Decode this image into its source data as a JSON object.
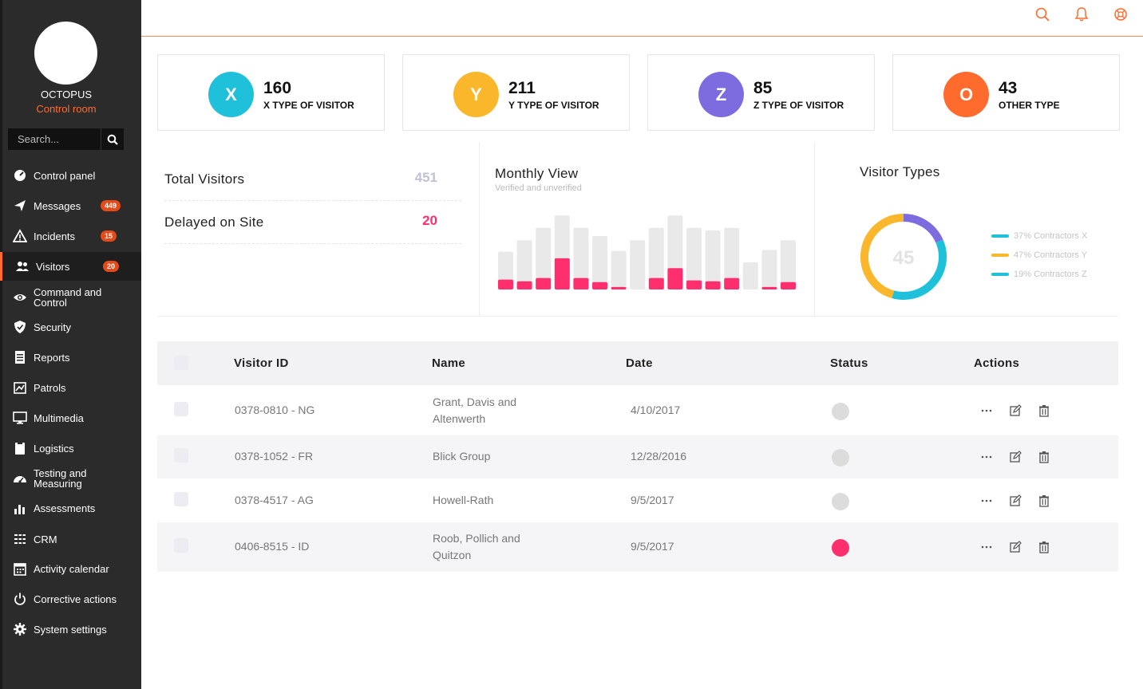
{
  "brand": {
    "name": "OCTOPUS",
    "subtitle": "Control room"
  },
  "search": {
    "placeholder": "Search..."
  },
  "sidebar": {
    "items": [
      {
        "label": "Control panel",
        "icon": "gauge-icon"
      },
      {
        "label": "Messages",
        "icon": "paper-plane-icon",
        "badge": "449"
      },
      {
        "label": "Incidents",
        "icon": "warning-icon",
        "badge": "15"
      },
      {
        "label": "Visitors",
        "icon": "users-icon",
        "badge": "20",
        "active": true
      },
      {
        "label": "Command and Control",
        "icon": "eye-icon"
      },
      {
        "label": "Security",
        "icon": "shield-icon"
      },
      {
        "label": "Reports",
        "icon": "report-icon"
      },
      {
        "label": "Patrols",
        "icon": "map-icon"
      },
      {
        "label": "Multimedia",
        "icon": "monitor-icon"
      },
      {
        "label": "Logistics",
        "icon": "clipboard-icon"
      },
      {
        "label": "Testing and Measuring",
        "icon": "dashboard-icon"
      },
      {
        "label": "Assessments",
        "icon": "bar-chart-icon"
      },
      {
        "label": "CRM",
        "icon": "list-icon"
      },
      {
        "label": "Activity calendar",
        "icon": "calendar-icon"
      },
      {
        "label": "Corrective actions",
        "icon": "power-icon"
      },
      {
        "label": "System settings",
        "icon": "gear-icon"
      }
    ]
  },
  "topbar": {
    "icons": [
      "search-icon",
      "bell-icon",
      "support-icon"
    ],
    "accent": "#ff6b2c"
  },
  "stats": [
    {
      "letter": "X",
      "value": "160",
      "label": "X TYPE OF VISITOR",
      "color": "#1ec1d9"
    },
    {
      "letter": "Y",
      "value": "211",
      "label": "Y TYPE OF VISITOR",
      "color": "#fbb72c"
    },
    {
      "letter": "Z",
      "value": "85",
      "label": "Z TYPE OF VISITOR",
      "color": "#7c6ce0"
    },
    {
      "letter": "O",
      "value": "43",
      "label": "OTHER TYPE",
      "color": "#ff6b2c"
    }
  ],
  "summary": [
    {
      "label": "Total Visitors",
      "value": "451",
      "color": "#c1c1d4"
    },
    {
      "label": "Delayed on Site",
      "value": "20",
      "color": "#ff2f6d"
    }
  ],
  "chart_data": [
    {
      "type": "bar",
      "title": "Monthly View",
      "subtitle": "Verified and unverified",
      "series": [
        {
          "values": [
            46,
            60,
            75,
            90,
            75,
            65,
            47,
            60,
            75,
            90,
            75,
            72,
            75,
            33,
            48,
            60
          ],
          "color": "#e9e9e9"
        },
        {
          "values": [
            12,
            10,
            14,
            38,
            14,
            9,
            3,
            0,
            14,
            26,
            11,
            10,
            14,
            0,
            3,
            9
          ],
          "color": "#ff2f6d"
        }
      ]
    },
    {
      "type": "pie",
      "title": "Visitor Types",
      "center_value": "45",
      "slices": [
        {
          "label": "37% Contractors X",
          "value": 37,
          "color": "#1ec1d9"
        },
        {
          "label": "47% Contractors Y",
          "value": 47,
          "color": "#fbb72c"
        },
        {
          "label": "19% Contractors Z",
          "value": 19,
          "color": "#7c6ce0"
        }
      ],
      "legend_colors": [
        "#1ec1d9",
        "#fbb72c",
        "#1ec1d9"
      ]
    }
  ],
  "table": {
    "headers": [
      "Visitor ID",
      "Name",
      "Date",
      "Status",
      "Actions"
    ],
    "rows": [
      {
        "id": "0378-0810 - NG",
        "name": "Grant, Davis and Altenwerth",
        "date": "4/10/2017",
        "status": "inactive"
      },
      {
        "id": "0378-1052 - FR",
        "name": "Blick Group",
        "date": "12/28/2016",
        "status": "inactive"
      },
      {
        "id": "0378-4517 - AG",
        "name": "Howell-Rath",
        "date": "9/5/2017",
        "status": "inactive"
      },
      {
        "id": "0406-8515 - ID",
        "name": "Roob, Pollich and Quitzon",
        "date": "9/5/2017",
        "status": "alert"
      }
    ],
    "status_colors": {
      "inactive": "#dcdcdc",
      "alert": "#ff2f6d"
    },
    "action_icons": [
      "more-icon",
      "edit-icon",
      "trash-icon"
    ]
  }
}
